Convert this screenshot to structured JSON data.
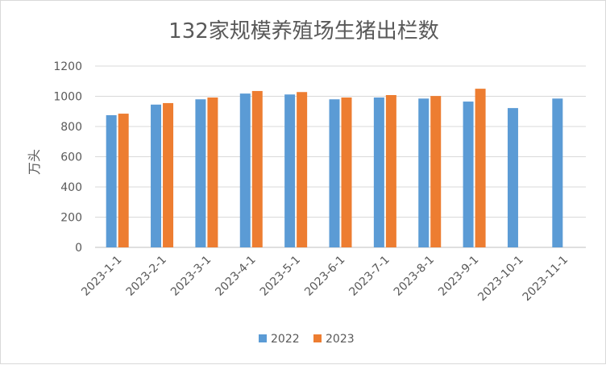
{
  "chart_data": {
    "type": "bar",
    "title": "132家规模养殖场生猪出栏数",
    "ylabel": "万头",
    "xlabel": "",
    "categories": [
      "2023-1-1",
      "2023-2-1",
      "2023-3-1",
      "2023-4-1",
      "2023-5-1",
      "2023-6-1",
      "2023-7-1",
      "2023-8-1",
      "2023-9-1",
      "2023-10-1",
      "2023-11-1"
    ],
    "series": [
      {
        "name": "2022",
        "color": "#5b9bd5",
        "values": [
          875,
          945,
          980,
          1018,
          1012,
          980,
          992,
          985,
          965,
          922,
          985
        ]
      },
      {
        "name": "2023",
        "color": "#ed7d31",
        "values": [
          885,
          955,
          992,
          1035,
          1028,
          992,
          1008,
          1002,
          1050,
          null,
          null
        ]
      }
    ],
    "ylim": [
      0,
      1200
    ],
    "yticks": [
      0,
      200,
      400,
      600,
      800,
      1000,
      1200
    ],
    "grid": true,
    "legend_position": "bottom"
  }
}
